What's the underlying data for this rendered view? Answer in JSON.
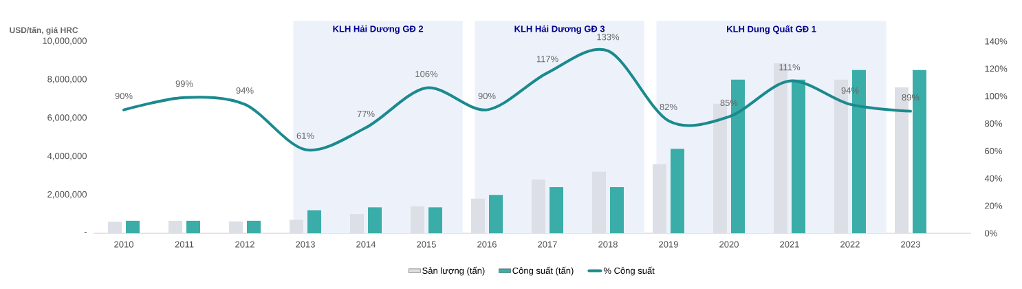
{
  "chart_data": {
    "type": "bar",
    "ylabel": "USD/tấn, giá HRC",
    "categories": [
      "2010",
      "2011",
      "2012",
      "2013",
      "2014",
      "2015",
      "2016",
      "2017",
      "2018",
      "2019",
      "2020",
      "2021",
      "2022",
      "2023"
    ],
    "series": [
      {
        "name": "Sản lượng (tấn)",
        "color": "#dcdfe5",
        "values": [
          600000,
          650000,
          620000,
          700000,
          1000000,
          1400000,
          1800000,
          2800000,
          3200000,
          3600000,
          6750000,
          8850000,
          8000000,
          7600000
        ]
      },
      {
        "name": "Công suất (tấn)",
        "color": "#3aada8",
        "values": [
          650000,
          650000,
          650000,
          1200000,
          1350000,
          1350000,
          2000000,
          2400000,
          2400000,
          4400000,
          8000000,
          8000000,
          8500000,
          8500000
        ]
      },
      {
        "name": "% Công suất",
        "type": "line",
        "axis": "y2",
        "color": "#1b8a8e",
        "values": [
          90,
          99,
          94,
          61,
          77,
          106,
          90,
          117,
          133,
          82,
          85,
          111,
          94,
          89
        ],
        "value_labels": [
          "90%",
          "99%",
          "94%",
          "61%",
          "77%",
          "106%",
          "90%",
          "117%",
          "133%",
          "82%",
          "85%",
          "111%",
          "94%",
          "89%"
        ]
      }
    ],
    "ylim": [
      0,
      10000000
    ],
    "yticks": [
      {
        "value": 0,
        "label": "-"
      },
      {
        "value": 2000000,
        "label": "2,000,000"
      },
      {
        "value": 4000000,
        "label": "4,000,000"
      },
      {
        "value": 6000000,
        "label": "6,000,000"
      },
      {
        "value": 8000000,
        "label": "8,000,000"
      },
      {
        "value": 10000000,
        "label": "10,000,000"
      }
    ],
    "y2lim": [
      0,
      140
    ],
    "y2ticks": [
      {
        "value": 0,
        "label": "0%"
      },
      {
        "value": 20,
        "label": "20%"
      },
      {
        "value": 40,
        "label": "40%"
      },
      {
        "value": 60,
        "label": "60%"
      },
      {
        "value": 80,
        "label": "80%"
      },
      {
        "value": 100,
        "label": "100%"
      },
      {
        "value": 120,
        "label": "120%"
      },
      {
        "value": 140,
        "label": "140%"
      }
    ],
    "bands": [
      {
        "axis": "x",
        "from": "2013",
        "to": "2015",
        "label": "KLH Hải Dương GĐ 2",
        "color": "#edf2fa"
      },
      {
        "axis": "x",
        "from": "2016",
        "to": "2018",
        "label": "KLH Hải Dương GĐ 3",
        "color": "#edf2fa"
      },
      {
        "axis": "x",
        "from": "2019",
        "to": "2022",
        "label": "KLH Dung Quất GĐ 1",
        "color": "#edf2fa"
      }
    ],
    "grid": false,
    "legend": "bottom",
    "marker": "none",
    "line_style": "solid"
  }
}
